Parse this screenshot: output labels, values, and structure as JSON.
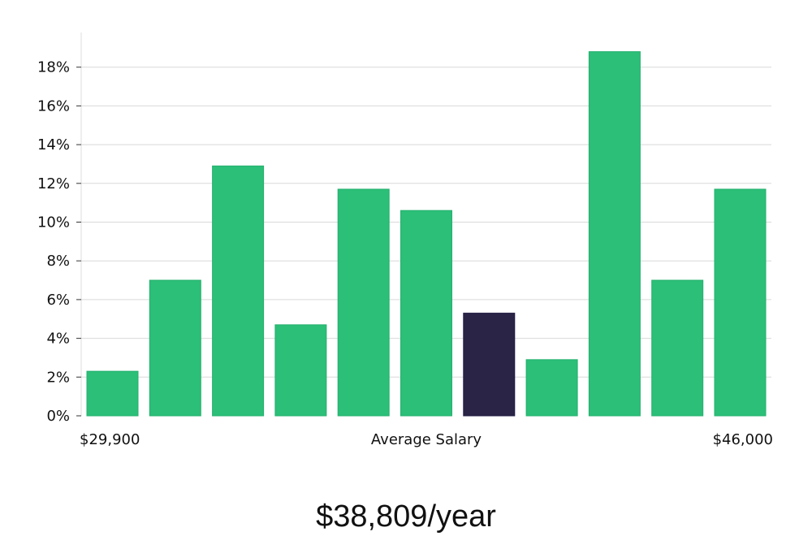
{
  "chart_data": {
    "type": "bar",
    "y_unit": "%",
    "ylim": [
      0,
      19.8
    ],
    "y_ticks": [
      0,
      2,
      4,
      6,
      8,
      10,
      12,
      14,
      16,
      18
    ],
    "grid": true,
    "values": [
      2.3,
      7.0,
      12.9,
      4.7,
      11.7,
      10.6,
      5.3,
      2.9,
      18.8,
      7.0,
      11.7
    ],
    "highlight_index": 6,
    "x_start_label": "$29,900",
    "x_center_label": "Average Salary",
    "x_end_label": "$46,000",
    "headline": "$38,809/year"
  },
  "colors": {
    "bar": "#2bbf78",
    "bar_edge": "#25b06e",
    "highlight": "#2a2546",
    "highlight_edge": "#1d1940",
    "grid": "#d9d9d9",
    "axis": "#dcdcdc"
  }
}
